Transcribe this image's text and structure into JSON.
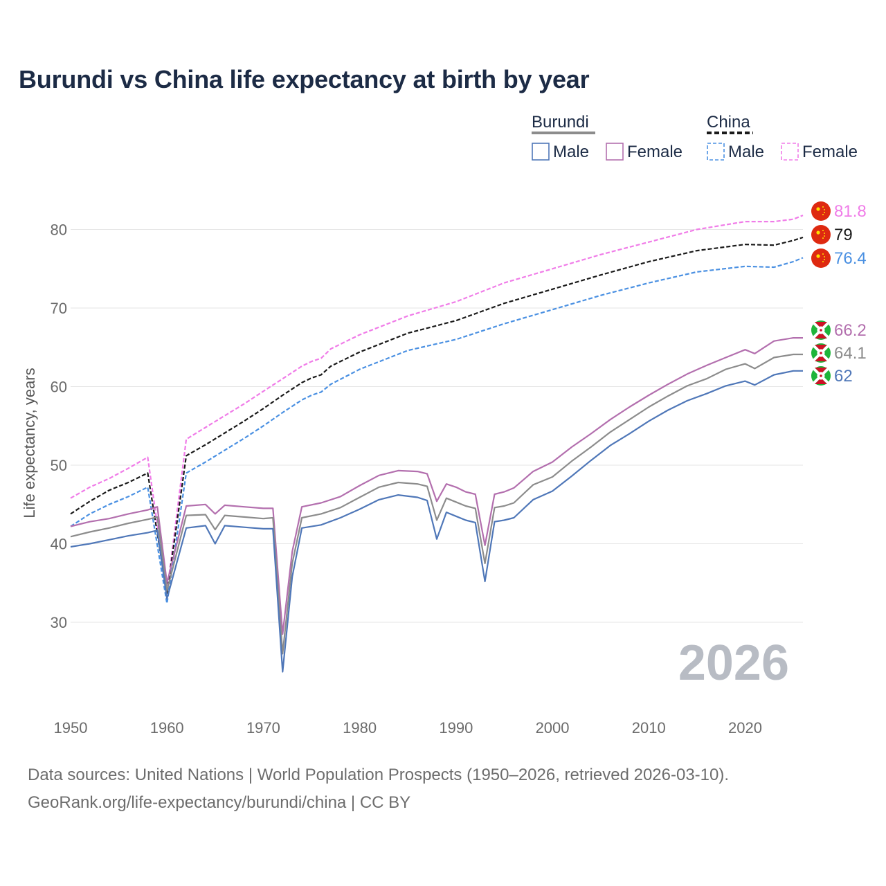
{
  "title": "Burundi vs China life expectancy at birth by year",
  "source_line1": "Data sources: United Nations | World Population Prospects (1950–2026, retrieved 2026-03-10).",
  "source_line2": "GeoRank.org/life-expectancy/burundi/china | CC BY",
  "watermark_year": "2026",
  "legend": {
    "burundi_label": "Burundi",
    "china_label": "China",
    "male_label": "Male",
    "female_label": "Female"
  },
  "colors": {
    "burundi_total": "#8c8c8c",
    "burundi_male": "#4f77b8",
    "burundi_female": "#b36fae",
    "china_total": "#1a1a1a",
    "china_male": "#4a90e2",
    "china_female": "#f07ce8",
    "grid": "#e6e6e6"
  },
  "chart_data": {
    "type": "line",
    "title": "Burundi vs China life expectancy at birth by year",
    "xlabel": "",
    "ylabel": "Life expectancy, years",
    "xlim": [
      1950,
      2026
    ],
    "ylim": [
      20,
      85
    ],
    "yticks": [
      30,
      40,
      50,
      60,
      70,
      80
    ],
    "xticks": [
      1950,
      1960,
      1970,
      1980,
      1990,
      2000,
      2010,
      2020
    ],
    "series": [
      {
        "name": "China Female",
        "key": "china_female",
        "style": "dashed",
        "end_label": "81.8",
        "flag": "china",
        "points": [
          [
            1950,
            45.8
          ],
          [
            1952,
            47.2
          ],
          [
            1954,
            48.3
          ],
          [
            1956,
            49.6
          ],
          [
            1958,
            51.0
          ],
          [
            1960,
            33.8
          ],
          [
            1962,
            53.3
          ],
          [
            1964,
            54.8
          ],
          [
            1966,
            56.3
          ],
          [
            1968,
            57.8
          ],
          [
            1970,
            59.4
          ],
          [
            1972,
            61.0
          ],
          [
            1974,
            62.6
          ],
          [
            1975,
            63.2
          ],
          [
            1976,
            63.6
          ],
          [
            1977,
            64.8
          ],
          [
            1980,
            66.6
          ],
          [
            1985,
            69.0
          ],
          [
            1990,
            70.8
          ],
          [
            1995,
            73.2
          ],
          [
            2000,
            75.0
          ],
          [
            2005,
            76.8
          ],
          [
            2010,
            78.4
          ],
          [
            2015,
            80.0
          ],
          [
            2020,
            81.0
          ],
          [
            2023,
            81.0
          ],
          [
            2025,
            81.3
          ],
          [
            2026,
            81.8
          ]
        ]
      },
      {
        "name": "China",
        "key": "china_total",
        "style": "dashed",
        "end_label": "79",
        "flag": "china",
        "points": [
          [
            1950,
            43.8
          ],
          [
            1952,
            45.4
          ],
          [
            1954,
            46.8
          ],
          [
            1956,
            47.8
          ],
          [
            1958,
            49.0
          ],
          [
            1960,
            33.6
          ],
          [
            1962,
            51.2
          ],
          [
            1964,
            52.6
          ],
          [
            1966,
            54.1
          ],
          [
            1968,
            55.6
          ],
          [
            1970,
            57.2
          ],
          [
            1972,
            58.9
          ],
          [
            1974,
            60.5
          ],
          [
            1975,
            61.1
          ],
          [
            1976,
            61.5
          ],
          [
            1977,
            62.6
          ],
          [
            1980,
            64.4
          ],
          [
            1985,
            66.8
          ],
          [
            1990,
            68.4
          ],
          [
            1995,
            70.6
          ],
          [
            2000,
            72.4
          ],
          [
            2005,
            74.2
          ],
          [
            2010,
            75.9
          ],
          [
            2015,
            77.3
          ],
          [
            2020,
            78.1
          ],
          [
            2023,
            78.0
          ],
          [
            2025,
            78.6
          ],
          [
            2026,
            79.0
          ]
        ]
      },
      {
        "name": "China Male",
        "key": "china_male",
        "style": "dashed",
        "end_label": "76.4",
        "flag": "china",
        "points": [
          [
            1950,
            42.2
          ],
          [
            1952,
            43.8
          ],
          [
            1954,
            45.0
          ],
          [
            1956,
            46.0
          ],
          [
            1958,
            47.2
          ],
          [
            1960,
            32.4
          ],
          [
            1962,
            49.0
          ],
          [
            1964,
            50.4
          ],
          [
            1966,
            51.9
          ],
          [
            1968,
            53.4
          ],
          [
            1970,
            55.0
          ],
          [
            1972,
            56.7
          ],
          [
            1974,
            58.3
          ],
          [
            1975,
            58.9
          ],
          [
            1976,
            59.3
          ],
          [
            1977,
            60.3
          ],
          [
            1980,
            62.2
          ],
          [
            1985,
            64.6
          ],
          [
            1990,
            66.0
          ],
          [
            1995,
            68.0
          ],
          [
            2000,
            69.8
          ],
          [
            2005,
            71.6
          ],
          [
            2010,
            73.2
          ],
          [
            2015,
            74.6
          ],
          [
            2020,
            75.3
          ],
          [
            2023,
            75.2
          ],
          [
            2025,
            75.9
          ],
          [
            2026,
            76.4
          ]
        ]
      },
      {
        "name": "Burundi Female",
        "key": "burundi_female",
        "style": "solid",
        "end_label": "66.2",
        "flag": "burundi",
        "points": [
          [
            1950,
            42.2
          ],
          [
            1952,
            42.8
          ],
          [
            1954,
            43.2
          ],
          [
            1956,
            43.8
          ],
          [
            1958,
            44.3
          ],
          [
            1959,
            44.7
          ],
          [
            1960,
            35.0
          ],
          [
            1962,
            44.8
          ],
          [
            1964,
            45.0
          ],
          [
            1965,
            43.8
          ],
          [
            1966,
            44.9
          ],
          [
            1968,
            44.7
          ],
          [
            1970,
            44.5
          ],
          [
            1971,
            44.5
          ],
          [
            1972,
            28.5
          ],
          [
            1973,
            39.0
          ],
          [
            1974,
            44.7
          ],
          [
            1976,
            45.2
          ],
          [
            1978,
            46.0
          ],
          [
            1980,
            47.4
          ],
          [
            1982,
            48.7
          ],
          [
            1984,
            49.3
          ],
          [
            1986,
            49.2
          ],
          [
            1987,
            48.9
          ],
          [
            1988,
            45.4
          ],
          [
            1989,
            47.6
          ],
          [
            1990,
            47.2
          ],
          [
            1991,
            46.6
          ],
          [
            1992,
            46.3
          ],
          [
            1993,
            39.8
          ],
          [
            1994,
            46.3
          ],
          [
            1995,
            46.6
          ],
          [
            1996,
            47.1
          ],
          [
            1998,
            49.2
          ],
          [
            2000,
            50.4
          ],
          [
            2002,
            52.3
          ],
          [
            2004,
            54.0
          ],
          [
            2006,
            55.8
          ],
          [
            2008,
            57.4
          ],
          [
            2010,
            58.9
          ],
          [
            2012,
            60.3
          ],
          [
            2014,
            61.6
          ],
          [
            2016,
            62.7
          ],
          [
            2018,
            63.7
          ],
          [
            2020,
            64.7
          ],
          [
            2021,
            64.2
          ],
          [
            2023,
            65.8
          ],
          [
            2025,
            66.2
          ],
          [
            2026,
            66.2
          ]
        ]
      },
      {
        "name": "Burundi",
        "key": "burundi_total",
        "style": "solid",
        "end_label": "64.1",
        "flag": "burundi",
        "points": [
          [
            1950,
            40.9
          ],
          [
            1952,
            41.5
          ],
          [
            1954,
            42.0
          ],
          [
            1956,
            42.6
          ],
          [
            1958,
            43.1
          ],
          [
            1959,
            43.4
          ],
          [
            1960,
            34.0
          ],
          [
            1962,
            43.6
          ],
          [
            1964,
            43.7
          ],
          [
            1965,
            41.8
          ],
          [
            1966,
            43.6
          ],
          [
            1968,
            43.4
          ],
          [
            1970,
            43.2
          ],
          [
            1971,
            43.3
          ],
          [
            1972,
            26.0
          ],
          [
            1973,
            37.5
          ],
          [
            1974,
            43.3
          ],
          [
            1976,
            43.8
          ],
          [
            1978,
            44.6
          ],
          [
            1980,
            45.9
          ],
          [
            1982,
            47.2
          ],
          [
            1984,
            47.8
          ],
          [
            1986,
            47.6
          ],
          [
            1987,
            47.3
          ],
          [
            1988,
            43.0
          ],
          [
            1989,
            45.8
          ],
          [
            1990,
            45.3
          ],
          [
            1991,
            44.8
          ],
          [
            1992,
            44.5
          ],
          [
            1993,
            37.5
          ],
          [
            1994,
            44.6
          ],
          [
            1995,
            44.8
          ],
          [
            1996,
            45.2
          ],
          [
            1998,
            47.5
          ],
          [
            2000,
            48.5
          ],
          [
            2002,
            50.5
          ],
          [
            2004,
            52.3
          ],
          [
            2006,
            54.2
          ],
          [
            2008,
            55.8
          ],
          [
            2010,
            57.4
          ],
          [
            2012,
            58.8
          ],
          [
            2014,
            60.1
          ],
          [
            2016,
            61.0
          ],
          [
            2018,
            62.2
          ],
          [
            2020,
            62.9
          ],
          [
            2021,
            62.3
          ],
          [
            2023,
            63.7
          ],
          [
            2025,
            64.1
          ],
          [
            2026,
            64.1
          ]
        ]
      },
      {
        "name": "Burundi Male",
        "key": "burundi_male",
        "style": "solid",
        "end_label": "62",
        "flag": "burundi",
        "points": [
          [
            1950,
            39.6
          ],
          [
            1952,
            40.0
          ],
          [
            1954,
            40.5
          ],
          [
            1956,
            41.0
          ],
          [
            1958,
            41.4
          ],
          [
            1959,
            41.7
          ],
          [
            1960,
            33.0
          ],
          [
            1962,
            42.0
          ],
          [
            1964,
            42.3
          ],
          [
            1965,
            40.0
          ],
          [
            1966,
            42.3
          ],
          [
            1968,
            42.1
          ],
          [
            1970,
            41.9
          ],
          [
            1971,
            41.9
          ],
          [
            1972,
            23.7
          ],
          [
            1973,
            35.8
          ],
          [
            1974,
            42.0
          ],
          [
            1976,
            42.4
          ],
          [
            1978,
            43.3
          ],
          [
            1980,
            44.4
          ],
          [
            1982,
            45.6
          ],
          [
            1984,
            46.2
          ],
          [
            1986,
            45.9
          ],
          [
            1987,
            45.5
          ],
          [
            1988,
            40.6
          ],
          [
            1989,
            44.0
          ],
          [
            1990,
            43.5
          ],
          [
            1991,
            43.0
          ],
          [
            1992,
            42.7
          ],
          [
            1993,
            35.2
          ],
          [
            1994,
            42.8
          ],
          [
            1995,
            43.0
          ],
          [
            1996,
            43.3
          ],
          [
            1998,
            45.6
          ],
          [
            2000,
            46.7
          ],
          [
            2002,
            48.6
          ],
          [
            2004,
            50.6
          ],
          [
            2006,
            52.5
          ],
          [
            2008,
            54.0
          ],
          [
            2010,
            55.6
          ],
          [
            2012,
            57.0
          ],
          [
            2014,
            58.2
          ],
          [
            2016,
            59.1
          ],
          [
            2018,
            60.1
          ],
          [
            2020,
            60.7
          ],
          [
            2021,
            60.2
          ],
          [
            2023,
            61.5
          ],
          [
            2025,
            62.0
          ],
          [
            2026,
            62.0
          ]
        ]
      }
    ]
  }
}
